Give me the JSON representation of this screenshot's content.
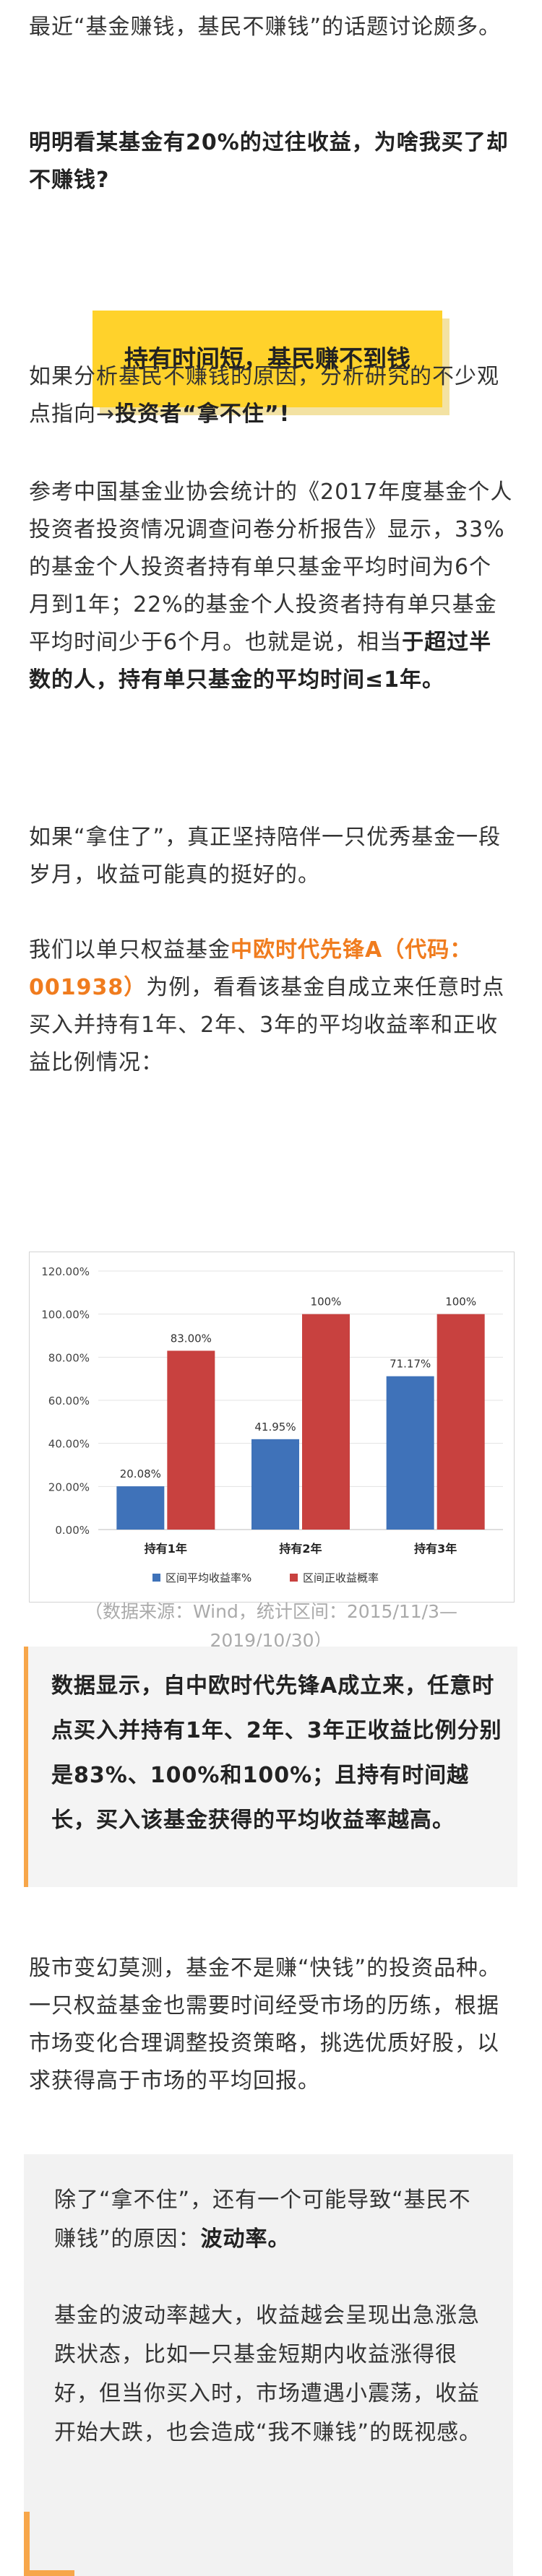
{
  "intro": {
    "line1": "最近“基金赚钱，基民不赚钱”的话题讨论颇多。"
  },
  "question": "明明看某基金有20%的过往收益，为啥我买了却不赚钱?",
  "section_title": "持有时间短，基民赚不到钱",
  "para1": {
    "text": "如果分析基民不赚钱的原因，分析研究的不少观点指向→",
    "bold": "投资者“拿不住”!"
  },
  "para2": {
    "text": "参考中国基金业协会统计的《2017年度基金个人投资者投资情况调查问卷分析报告》显示，33%的基金个人投资者持有单只基金平均时间为6个月到1年；22%的基金个人投资者持有单只基金平均时间少于6个月。也就是说，相当",
    "bold": "于超过半数的人，持有单只基金的平均时间≤1年。"
  },
  "para3": "如果“拿住了”，真正坚持陪伴一只优秀基金一段岁月，收益可能真的挺好的。",
  "para4": {
    "pre": "我们以单只权益基金",
    "highlight": "中欧时代先锋A（代码：001938）",
    "post": "为例，看看该基金自成立来任意时点买入并持有1年、2年、3年的平均收益率和正收益比例情况："
  },
  "chart_data": {
    "type": "bar",
    "categories": [
      "持有1年",
      "持有2年",
      "持有3年"
    ],
    "series": [
      {
        "name": "区间平均收益率%",
        "values": [
          20.08,
          41.95,
          71.17
        ],
        "labels": [
          "20.08%",
          "41.95%",
          "71.17%"
        ],
        "color": "#3f72b9"
      },
      {
        "name": "区间正收益概率",
        "values": [
          83.0,
          100,
          100
        ],
        "labels": [
          "83.00%",
          "100%",
          "100%"
        ],
        "color": "#c8413f"
      }
    ],
    "ylim": [
      0,
      120
    ],
    "yticks": [
      "0.00%",
      "20.00%",
      "40.00%",
      "60.00%",
      "80.00%",
      "100.00%",
      "120.00%"
    ],
    "legend_position": "bottom",
    "grid": true
  },
  "source_note": "（数据来源：Wind，统计区间：2015/11/3—2019/10/30）",
  "summary": "数据显示，自中欧时代先锋A成立来，任意时点买入并持有1年、2年、3年正收益比例分别是83%、100%和100%；且持有时间越长，买入该基金获得的平均收益率越高。",
  "para5": "股市变幻莫测，基金不是赚“快钱”的投资品种。一只权益基金也需要时间经受市场的历练，根据市场变化合理调整投资策略，挑选优质好股，以求获得高于市场的平均回报。",
  "grey_block": {
    "p1_text": "除了“拿不住”，还有一个可能导致“基民不赚钱”的原因：",
    "p1_bold": "波动率。",
    "p2": "基金的波动率越大，收益越会呈现出急涨急跌状态，比如一只基金短期内收益涨得很好，但当你买入时，市场遭遇小震荡，收益开始大跌，也会造成“我不赚钱”的既视感。"
  }
}
